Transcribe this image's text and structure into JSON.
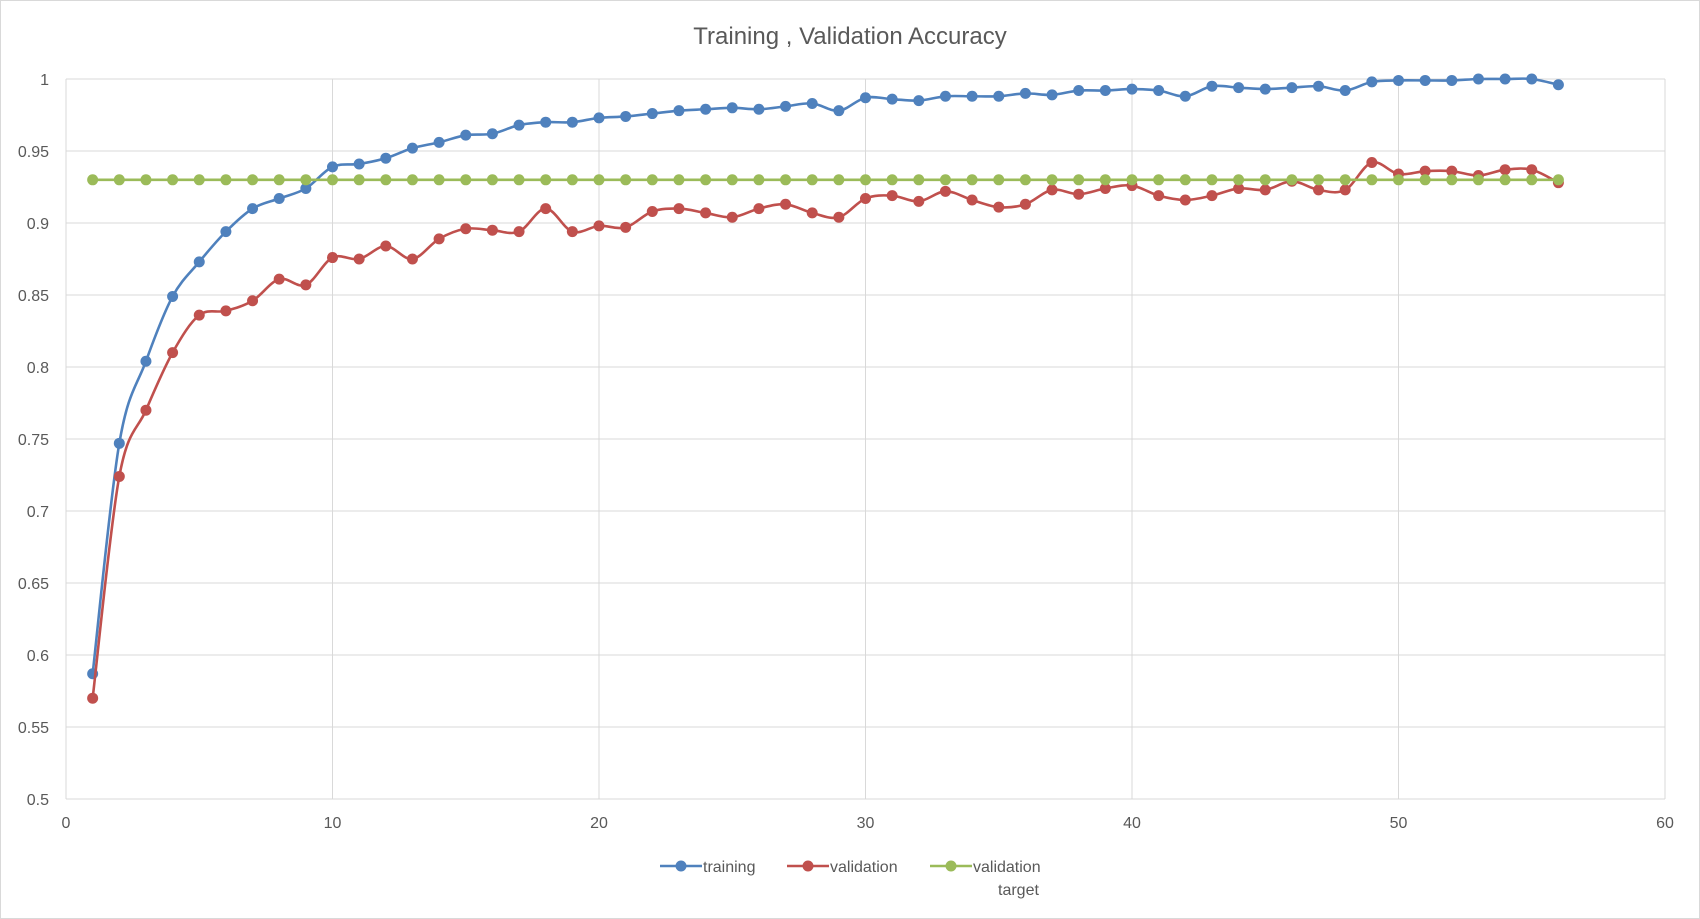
{
  "chart_data": {
    "type": "line",
    "title": "Training , Validation Accuracy",
    "xlabel": "",
    "ylabel": "",
    "xlim": [
      0,
      60
    ],
    "ylim": [
      0.5,
      1
    ],
    "x_ticks": [
      0,
      10,
      20,
      30,
      40,
      50,
      60
    ],
    "y_ticks": [
      0.5,
      0.55,
      0.6,
      0.65,
      0.7,
      0.75,
      0.8,
      0.85,
      0.9,
      0.95,
      1
    ],
    "x_tick_labels": [
      "0",
      "10",
      "20",
      "30",
      "40",
      "50",
      "60"
    ],
    "y_tick_labels": [
      "0.5",
      "0.55",
      "0.6",
      "0.65",
      "0.7",
      "0.75",
      "0.8",
      "0.85",
      "0.9",
      "0.95",
      "1"
    ],
    "grid": true,
    "legend_position": "bottom",
    "smooth": true,
    "x": [
      1,
      2,
      3,
      4,
      5,
      6,
      7,
      8,
      9,
      10,
      11,
      12,
      13,
      14,
      15,
      16,
      17,
      18,
      19,
      20,
      21,
      22,
      23,
      24,
      25,
      26,
      27,
      28,
      29,
      30,
      31,
      32,
      33,
      34,
      35,
      36,
      37,
      38,
      39,
      40,
      41,
      42,
      43,
      44,
      45,
      46,
      47,
      48,
      49,
      50,
      51,
      52,
      53,
      54,
      55,
      56
    ],
    "series": [
      {
        "name": "training",
        "legend_label": "training",
        "color": "#4f81bd",
        "values": [
          0.587,
          0.747,
          0.804,
          0.849,
          0.873,
          0.894,
          0.91,
          0.917,
          0.924,
          0.939,
          0.941,
          0.945,
          0.952,
          0.956,
          0.961,
          0.962,
          0.968,
          0.97,
          0.97,
          0.973,
          0.974,
          0.976,
          0.978,
          0.979,
          0.98,
          0.979,
          0.981,
          0.983,
          0.978,
          0.987,
          0.986,
          0.985,
          0.988,
          0.988,
          0.988,
          0.99,
          0.989,
          0.992,
          0.992,
          0.993,
          0.992,
          0.988,
          0.995,
          0.994,
          0.993,
          0.994,
          0.995,
          0.992,
          0.998,
          0.999,
          0.999,
          0.999,
          1.0,
          1.0,
          1.0,
          0.996
        ]
      },
      {
        "name": "validation",
        "legend_label": "validation",
        "color": "#c0504d",
        "values": [
          0.57,
          0.724,
          0.77,
          0.81,
          0.836,
          0.839,
          0.846,
          0.861,
          0.857,
          0.876,
          0.875,
          0.884,
          0.875,
          0.889,
          0.896,
          0.895,
          0.894,
          0.91,
          0.894,
          0.898,
          0.897,
          0.908,
          0.91,
          0.907,
          0.904,
          0.91,
          0.913,
          0.907,
          0.904,
          0.917,
          0.919,
          0.915,
          0.922,
          0.916,
          0.911,
          0.913,
          0.923,
          0.92,
          0.924,
          0.926,
          0.919,
          0.916,
          0.919,
          0.924,
          0.923,
          0.929,
          0.923,
          0.923,
          0.942,
          0.934,
          0.936,
          0.936,
          0.933,
          0.937,
          0.937,
          0.928
        ]
      },
      {
        "name": "validation target",
        "legend_label": [
          "validation",
          "target"
        ],
        "color": "#9bbb59",
        "values": [
          0.93,
          0.93,
          0.93,
          0.93,
          0.93,
          0.93,
          0.93,
          0.93,
          0.93,
          0.93,
          0.93,
          0.93,
          0.93,
          0.93,
          0.93,
          0.93,
          0.93,
          0.93,
          0.93,
          0.93,
          0.93,
          0.93,
          0.93,
          0.93,
          0.93,
          0.93,
          0.93,
          0.93,
          0.93,
          0.93,
          0.93,
          0.93,
          0.93,
          0.93,
          0.93,
          0.93,
          0.93,
          0.93,
          0.93,
          0.93,
          0.93,
          0.93,
          0.93,
          0.93,
          0.93,
          0.93,
          0.93,
          0.93,
          0.93,
          0.93,
          0.93,
          0.93,
          0.93,
          0.93,
          0.93,
          0.93
        ]
      }
    ]
  }
}
